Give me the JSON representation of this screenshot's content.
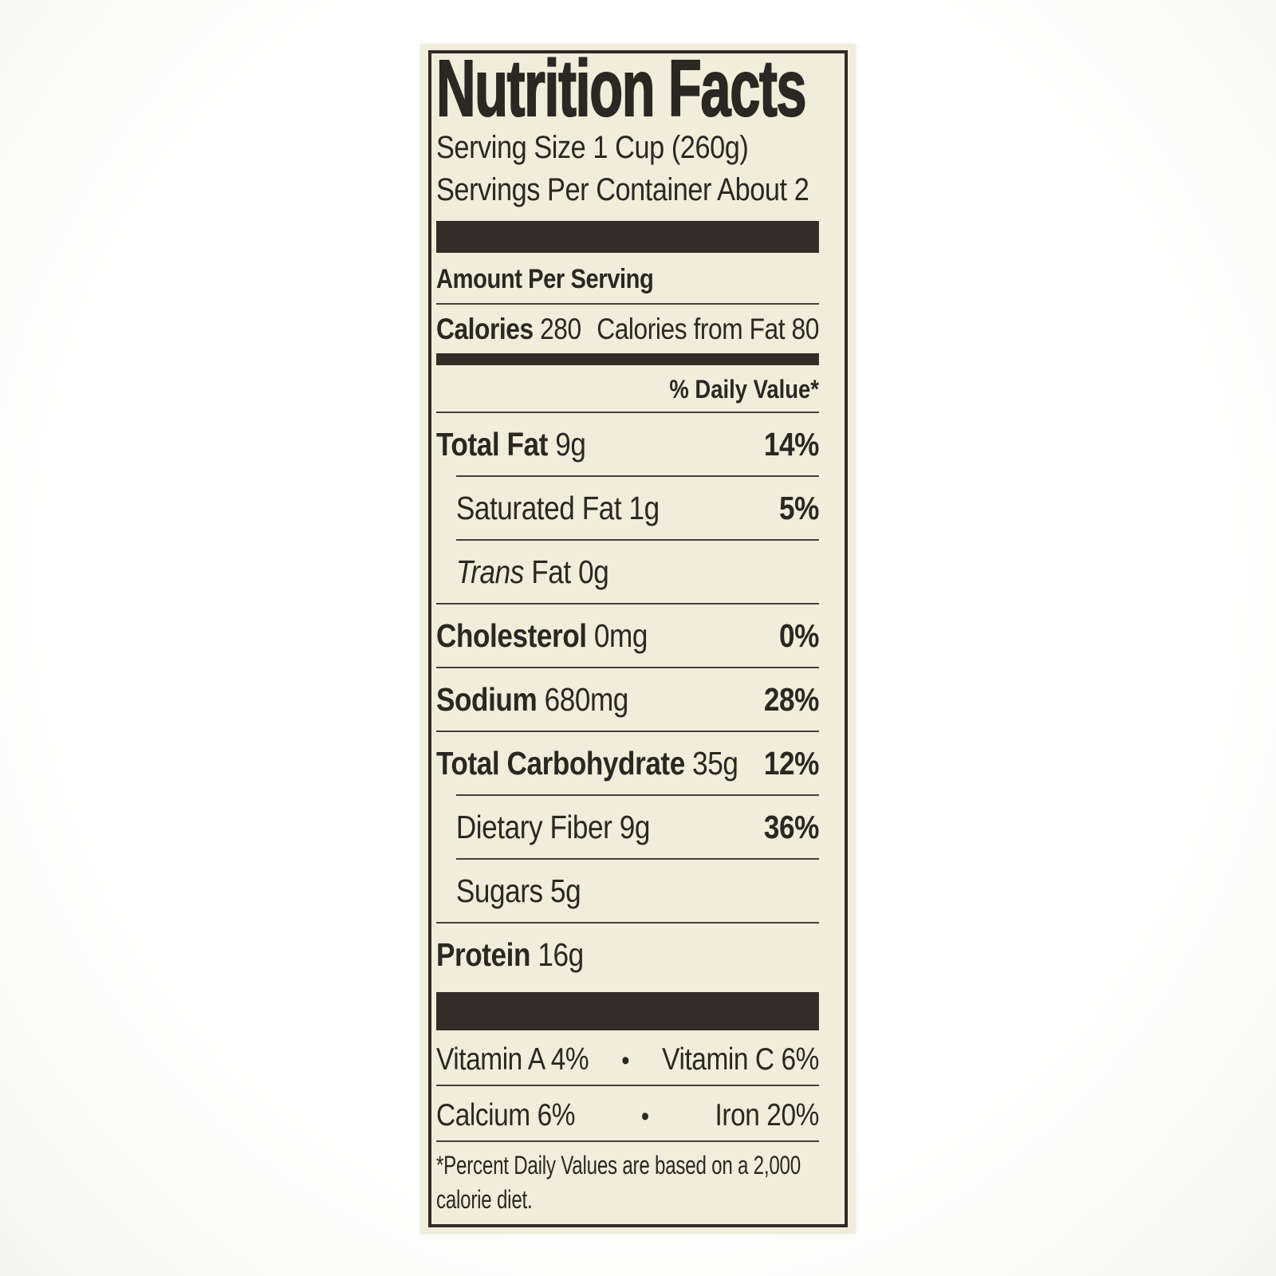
{
  "label": {
    "title": "Nutrition Facts",
    "serving_size": "Serving Size 1 Cup (260g)",
    "servings_per_container": "Servings Per Container About 2",
    "amount_per_serving": "Amount Per Serving",
    "calories": {
      "label": "Calories",
      "value": "280",
      "from_fat_label": "Calories from Fat",
      "from_fat_value": "80"
    },
    "daily_value_header": "% Daily Value*",
    "nutrients": [
      {
        "name": "Total Fat",
        "amount": "9g",
        "dv": "14%"
      },
      {
        "name": "Saturated Fat",
        "amount": "1g",
        "dv": "5%"
      },
      {
        "name": "Trans",
        "amount": "Fat 0g",
        "dv": ""
      },
      {
        "name": "Cholesterol",
        "amount": "0mg",
        "dv": "0%"
      },
      {
        "name": "Sodium",
        "amount": "680mg",
        "dv": "28%"
      },
      {
        "name": "Total Carbohydrate",
        "amount": "35g",
        "dv": "12%"
      },
      {
        "name": "Dietary Fiber",
        "amount": "9g",
        "dv": "36%"
      },
      {
        "name": "Sugars",
        "amount": "5g",
        "dv": ""
      },
      {
        "name": "Protein",
        "amount": "16g",
        "dv": ""
      }
    ],
    "bullet": "•",
    "micronutrients": [
      {
        "left": "Vitamin A 4%",
        "right": "Vitamin C 6%"
      },
      {
        "left": "Calcium 6%",
        "right": "Iron 20%"
      }
    ],
    "footnote": "*Percent Daily Values are based on a 2,000 calorie diet.",
    "colors": {
      "label_bg": "#f0eeda",
      "ink": "#2b2722",
      "bar": "#332d27"
    }
  }
}
